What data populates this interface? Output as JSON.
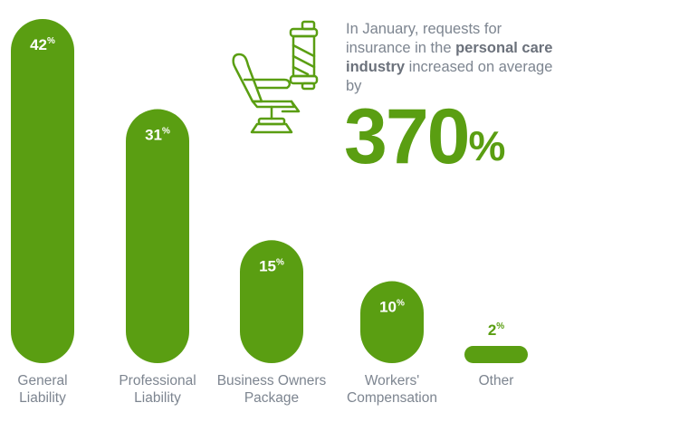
{
  "chart_data": {
    "type": "bar",
    "categories": [
      [
        "General",
        "Liability"
      ],
      [
        "Professional",
        "Liability"
      ],
      [
        "Business Owners",
        "Package"
      ],
      [
        "Workers'",
        "Compensation"
      ],
      [
        "Other"
      ]
    ],
    "values": [
      42,
      31,
      15,
      10,
      2
    ],
    "data_labels": [
      "42",
      "31",
      "15",
      "10",
      "2"
    ],
    "value_suffix": "%",
    "ylim": [
      0,
      42
    ],
    "bar_color": "#5a9e12",
    "grid": false,
    "legend": "none"
  },
  "callout": {
    "text_before": "In January, requests for insurance in the ",
    "text_bold": "personal care industry",
    "text_after": " increased on average by",
    "big_number": "370",
    "big_suffix": "%",
    "icon": "barber-chair-and-pole-icon",
    "accent_color": "#5a9e12",
    "text_color": "#7d8590"
  }
}
